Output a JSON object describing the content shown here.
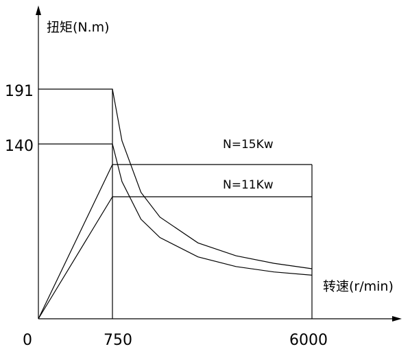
{
  "chart_data": {
    "type": "line",
    "ylabel": "扭矩(N.m)",
    "xlabel": "转速(r/min)",
    "x_tick_labels": [
      "0",
      "750",
      "6000"
    ],
    "y_tick_labels": [
      "191",
      "140"
    ],
    "annotations": [
      "N=15Kw",
      "N=11Kw"
    ],
    "series": [
      {
        "name": "N=15Kw",
        "torque": {
          "x": [
            0,
            750,
            1000,
            1500,
            2000,
            3000,
            4000,
            5000,
            6000
          ],
          "y": [
            191,
            191,
            143,
            95,
            72,
            48,
            36,
            29,
            24
          ]
        },
        "power": {
          "x": [
            0,
            750,
            6000
          ],
          "y": [
            0,
            15,
            15
          ]
        }
      },
      {
        "name": "N=11Kw",
        "torque": {
          "x": [
            0,
            750,
            1000,
            1500,
            2000,
            3000,
            4000,
            5000,
            6000
          ],
          "y": [
            140,
            140,
            105,
            70,
            53,
            35,
            26,
            21,
            18
          ]
        },
        "power": {
          "x": [
            0,
            750,
            6000
          ],
          "y": [
            0,
            11,
            11
          ]
        }
      }
    ]
  }
}
